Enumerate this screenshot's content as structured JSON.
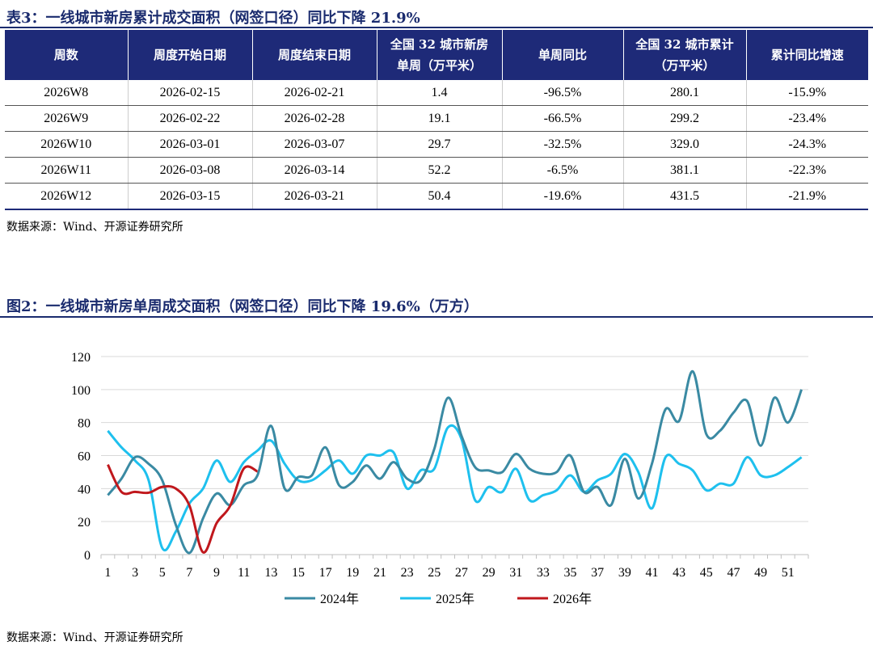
{
  "table_section": {
    "title": "表3：一线城市新房累计成交面积（网签口径）同比下降 21.9%",
    "headers": [
      [
        "周数"
      ],
      [
        "周度开始日期"
      ],
      [
        "周度结束日期"
      ],
      [
        "全国 32 城市新房",
        "单周（万平米）"
      ],
      [
        "单周同比"
      ],
      [
        "全国 32 城市累计",
        "（万平米）"
      ],
      [
        "累计同比增速"
      ]
    ],
    "rows": [
      [
        "2026W8",
        "2026-02-15",
        "2026-02-21",
        "1.4",
        "-96.5%",
        "280.1",
        "-15.9%"
      ],
      [
        "2026W9",
        "2026-02-22",
        "2026-02-28",
        "19.1",
        "-66.5%",
        "299.2",
        "-23.4%"
      ],
      [
        "2026W10",
        "2026-03-01",
        "2026-03-07",
        "29.7",
        "-32.5%",
        "329.0",
        "-24.3%"
      ],
      [
        "2026W11",
        "2026-03-08",
        "2026-03-14",
        "52.2",
        "-6.5%",
        "381.1",
        "-22.3%"
      ],
      [
        "2026W12",
        "2026-03-15",
        "2026-03-21",
        "50.4",
        "-19.6%",
        "431.5",
        "-21.9%"
      ]
    ],
    "source": "数据来源：Wind、开源证券研究所"
  },
  "chart_section": {
    "title": "图2：一线城市新房单周成交面积（网签口径）同比下降 19.6%（万方）",
    "source": "数据来源：Wind、开源证券研究所"
  },
  "chart_data": {
    "type": "line",
    "title": "图2：一线城市新房单周成交面积（网签口径）同比下降 19.6%（万方）",
    "xlabel": "",
    "ylabel": "",
    "ylim": [
      0,
      120
    ],
    "yticks": [
      0,
      20,
      40,
      60,
      80,
      100,
      120
    ],
    "xlim": [
      1,
      52
    ],
    "xticks": [
      1,
      3,
      5,
      7,
      9,
      11,
      13,
      15,
      17,
      19,
      21,
      23,
      25,
      27,
      29,
      31,
      33,
      35,
      37,
      39,
      41,
      43,
      45,
      47,
      49,
      51
    ],
    "grid": "horizontal",
    "legend_position": "bottom",
    "series": [
      {
        "name": "2024年",
        "color": "#3a8aa3",
        "x": [
          1,
          2,
          3,
          4,
          5,
          6,
          7,
          8,
          9,
          10,
          11,
          12,
          13,
          14,
          15,
          16,
          17,
          18,
          19,
          20,
          21,
          22,
          23,
          24,
          25,
          26,
          27,
          28,
          29,
          30,
          31,
          32,
          33,
          34,
          35,
          36,
          37,
          38,
          39,
          40,
          41,
          42,
          43,
          44,
          45,
          46,
          47,
          48,
          49,
          50,
          51,
          52
        ],
        "values": [
          36,
          46,
          59,
          55,
          45,
          18,
          1,
          22,
          37,
          30,
          42,
          48,
          78,
          40,
          47,
          48,
          65,
          42,
          44,
          54,
          46,
          56,
          46,
          45,
          64,
          95,
          72,
          53,
          51,
          50,
          61,
          52,
          49,
          50,
          60,
          38,
          41,
          30,
          58,
          34,
          55,
          88,
          81,
          111,
          73,
          75,
          86,
          93,
          66,
          95,
          80,
          100
        ]
      },
      {
        "name": "2025年",
        "color": "#1ec0ee",
        "x": [
          1,
          2,
          3,
          4,
          5,
          6,
          7,
          8,
          9,
          10,
          11,
          12,
          13,
          14,
          15,
          16,
          17,
          18,
          19,
          20,
          21,
          22,
          23,
          24,
          25,
          26,
          27,
          28,
          29,
          30,
          31,
          32,
          33,
          34,
          35,
          36,
          37,
          38,
          39,
          40,
          41,
          42,
          43,
          44,
          45,
          46,
          47,
          48,
          49,
          50,
          51,
          52
        ],
        "values": [
          75,
          65,
          57,
          45,
          4,
          14,
          31,
          40,
          57,
          44,
          56,
          63,
          69,
          55,
          45,
          45,
          51,
          57,
          49,
          60,
          60,
          62,
          40,
          51,
          52,
          77,
          70,
          33,
          41,
          38,
          52,
          33,
          36,
          39,
          48,
          38,
          45,
          49,
          61,
          50,
          28,
          59,
          55,
          51,
          39,
          43,
          43,
          59,
          48,
          48,
          53,
          59
        ]
      },
      {
        "name": "2026年",
        "color": "#c0171c",
        "x": [
          1,
          2,
          3,
          4,
          5,
          6,
          7,
          8,
          9,
          10,
          11,
          12
        ],
        "values": [
          54.5,
          38,
          38,
          37.5,
          41,
          40,
          29.7,
          1.4,
          19.1,
          29.7,
          52.2,
          50.4
        ]
      }
    ]
  }
}
